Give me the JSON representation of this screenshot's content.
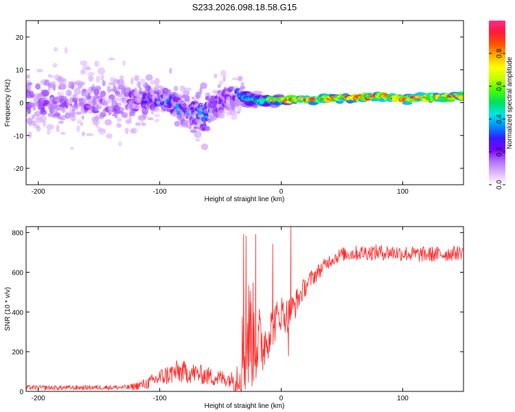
{
  "title": "S233.2026.098.18.58.G15",
  "colors": {
    "snr_line": "#ff2a2a",
    "axis": "#000000",
    "background": "#ffffff"
  },
  "chart_data": [
    {
      "type": "heatmap",
      "name": "spectrogram",
      "xlabel": "Height of straight line (km)",
      "ylabel": "Frequency (Hz)",
      "xlim": [
        -210,
        150
      ],
      "ylim": [
        -25,
        25
      ],
      "xticks": [
        -200,
        -100,
        0,
        100
      ],
      "yticks": [
        -20,
        -10,
        0,
        10,
        20
      ],
      "colorbar": {
        "label": "Normalized spectral amplitude",
        "range": [
          0.0,
          1.0
        ],
        "ticks": [
          0.0,
          0.2,
          0.4,
          0.6,
          0.8
        ],
        "colormap": [
          "#ffffff",
          "#e0b8ff",
          "#b070ff",
          "#7a00ff",
          "#3020ff",
          "#0090ff",
          "#00e6e6",
          "#00e060",
          "#40ff00",
          "#c0ff00",
          "#ffff00",
          "#ffb000",
          "#ff5000",
          "#ff1a3a",
          "#ff2a8a"
        ]
      },
      "ridge": {
        "x": [
          -205,
          -180,
          -150,
          -125,
          -110,
          -95,
          -85,
          -75,
          -65,
          -55,
          -45,
          -35,
          -30,
          -25,
          -15,
          -5,
          10,
          30,
          60,
          85,
          100,
          115,
          130,
          150
        ],
        "freq": [
          1,
          0,
          0.5,
          0,
          1,
          1,
          -2,
          -3,
          -4,
          -1,
          1,
          3,
          2,
          1,
          0.5,
          0.8,
          1,
          1,
          1.5,
          2,
          1,
          1.5,
          1.5,
          2
        ],
        "amplitude": [
          0.2,
          0.18,
          0.2,
          0.2,
          0.3,
          0.3,
          0.35,
          0.35,
          0.4,
          0.3,
          0.25,
          0.3,
          0.4,
          0.5,
          0.6,
          0.75,
          0.85,
          0.8,
          0.9,
          0.9,
          0.85,
          0.9,
          0.9,
          0.85
        ],
        "spread_hz": [
          12,
          12,
          12,
          10,
          6,
          5,
          5,
          6,
          8,
          6,
          6,
          5,
          3,
          2,
          1.2,
          1,
          0.8,
          0.8,
          0.8,
          0.8,
          0.8,
          0.8,
          0.8,
          0.8
        ]
      }
    },
    {
      "type": "line",
      "name": "snr",
      "xlabel": "Height of straight line (km)",
      "ylabel": "SNR (10 * v/v)",
      "xlim": [
        -210,
        150
      ],
      "ylim": [
        0,
        830
      ],
      "xticks": [
        -200,
        -100,
        0,
        100
      ],
      "yticks": [
        0,
        200,
        400,
        600,
        800
      ],
      "envelope": {
        "x": [
          -210,
          -180,
          -150,
          -125,
          -110,
          -100,
          -85,
          -70,
          -55,
          -40,
          -35,
          -30,
          -25,
          -20,
          -15,
          -10,
          -5,
          0,
          5,
          10,
          15,
          20,
          25,
          30,
          40,
          50,
          70,
          90,
          110,
          130,
          150
        ],
        "mean": [
          20,
          18,
          20,
          20,
          40,
          70,
          100,
          90,
          70,
          60,
          80,
          250,
          300,
          250,
          230,
          300,
          350,
          400,
          380,
          420,
          480,
          530,
          570,
          600,
          660,
          690,
          700,
          700,
          690,
          690,
          700
        ],
        "noise": [
          12,
          12,
          12,
          14,
          30,
          45,
          60,
          50,
          45,
          40,
          150,
          300,
          300,
          220,
          150,
          120,
          100,
          90,
          90,
          80,
          60,
          50,
          45,
          40,
          35,
          35,
          40,
          40,
          40,
          40,
          35
        ]
      },
      "spikes": [
        {
          "x": -31,
          "y": 790
        },
        {
          "x": -29,
          "y": 780
        },
        {
          "x": -21,
          "y": 790
        },
        {
          "x": -7,
          "y": 740
        },
        {
          "x": 8,
          "y": 830
        },
        {
          "x": 6,
          "y": 180
        }
      ]
    }
  ]
}
